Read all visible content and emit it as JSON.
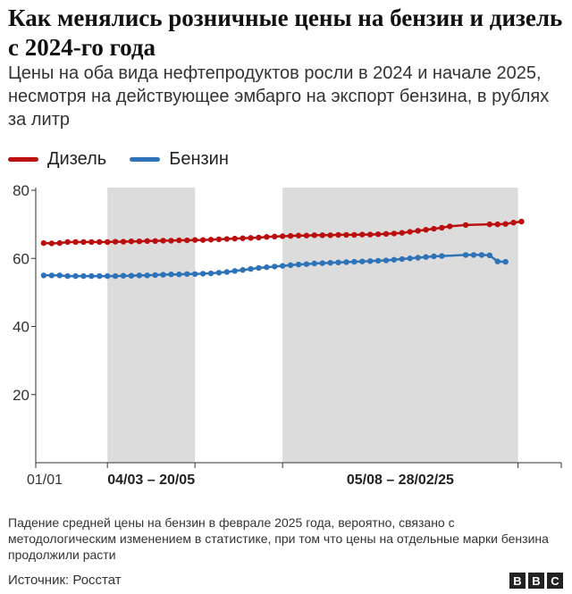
{
  "title": "Как менялись розничные цены на бензин и дизель с 2024-го года",
  "subtitle": "Цены на оба вида нефтепродуктов росли в 2024 и начале 2025, несмотря на действующее эмбарго на экспорт бензина, в рублях за литр",
  "note": "Падение средней цены на бензин в феврале 2025 года, вероятно, связано с методологическим изменением в статистике, при том что цены на отдельные марки бензина продолжили расти",
  "source": "Источник: Росстат",
  "logo": [
    "B",
    "B",
    "C"
  ],
  "colors": {
    "diesel": "#BB0F0F",
    "gasoline": "#2E73B8",
    "shade": "#DCDCDC",
    "axis": "#333333"
  },
  "chart_data": {
    "type": "line",
    "ylim": [
      0,
      80
    ],
    "yticks": [
      20,
      40,
      60,
      80
    ],
    "grid": false,
    "legend_position": "top-left",
    "x_ticks": [
      {
        "date": "2024-01-01",
        "label": "01/01",
        "bold": false
      },
      {
        "date": "2024-03-04",
        "label": "",
        "bold": false
      },
      {
        "date": "2024-05-20",
        "label": "",
        "bold": false
      },
      {
        "date": "2024-08-05",
        "label": "",
        "bold": false
      },
      {
        "date": "2025-02-28",
        "label": "",
        "bold": false
      },
      {
        "date": "2025-04-07",
        "label": "",
        "bold": false
      }
    ],
    "x_range": [
      "2024-01-01",
      "2025-04-07"
    ],
    "shaded_periods": [
      {
        "start": "2024-03-04",
        "end": "2024-05-20",
        "label": "04/03 – 20/05"
      },
      {
        "start": "2024-08-05",
        "end": "2025-02-28",
        "label": "05/08 – 28/02/25"
      }
    ],
    "series": [
      {
        "name": "Дизель",
        "color": "#BB0F0F",
        "points": [
          [
            "2024-01-08",
            64.5
          ],
          [
            "2024-01-15",
            64.4
          ],
          [
            "2024-01-22",
            64.5
          ],
          [
            "2024-01-29",
            64.8
          ],
          [
            "2024-02-05",
            64.8
          ],
          [
            "2024-02-12",
            64.8
          ],
          [
            "2024-02-19",
            64.8
          ],
          [
            "2024-02-26",
            64.8
          ],
          [
            "2024-03-04",
            64.8
          ],
          [
            "2024-03-11",
            64.9
          ],
          [
            "2024-03-18",
            64.9
          ],
          [
            "2024-03-25",
            65.0
          ],
          [
            "2024-04-01",
            65.0
          ],
          [
            "2024-04-08",
            65.1
          ],
          [
            "2024-04-15",
            65.1
          ],
          [
            "2024-04-22",
            65.2
          ],
          [
            "2024-04-29",
            65.2
          ],
          [
            "2024-05-06",
            65.3
          ],
          [
            "2024-05-13",
            65.3
          ],
          [
            "2024-05-20",
            65.4
          ],
          [
            "2024-05-27",
            65.4
          ],
          [
            "2024-06-03",
            65.5
          ],
          [
            "2024-06-10",
            65.6
          ],
          [
            "2024-06-17",
            65.7
          ],
          [
            "2024-06-24",
            65.8
          ],
          [
            "2024-07-01",
            65.9
          ],
          [
            "2024-07-08",
            66.0
          ],
          [
            "2024-07-15",
            66.1
          ],
          [
            "2024-07-22",
            66.3
          ],
          [
            "2024-07-29",
            66.4
          ],
          [
            "2024-08-05",
            66.5
          ],
          [
            "2024-08-12",
            66.6
          ],
          [
            "2024-08-19",
            66.7
          ],
          [
            "2024-08-26",
            66.7
          ],
          [
            "2024-09-02",
            66.8
          ],
          [
            "2024-09-09",
            66.8
          ],
          [
            "2024-09-16",
            66.8
          ],
          [
            "2024-09-23",
            66.9
          ],
          [
            "2024-09-30",
            66.9
          ],
          [
            "2024-10-07",
            66.9
          ],
          [
            "2024-10-14",
            67.0
          ],
          [
            "2024-10-21",
            67.0
          ],
          [
            "2024-10-28",
            67.1
          ],
          [
            "2024-11-04",
            67.2
          ],
          [
            "2024-11-11",
            67.3
          ],
          [
            "2024-11-18",
            67.5
          ],
          [
            "2024-11-25",
            67.8
          ],
          [
            "2024-12-02",
            68.1
          ],
          [
            "2024-12-09",
            68.4
          ],
          [
            "2024-12-16",
            68.7
          ],
          [
            "2024-12-23",
            69.0
          ],
          [
            "2024-12-30",
            69.4
          ],
          [
            "2025-01-13",
            69.8
          ],
          [
            "2025-02-03",
            70.0
          ],
          [
            "2025-02-10",
            70.0
          ],
          [
            "2025-02-17",
            70.1
          ],
          [
            "2025-02-24",
            70.5
          ],
          [
            "2025-03-03",
            70.8
          ]
        ]
      },
      {
        "name": "Бензин",
        "color": "#2E73B8",
        "points": [
          [
            "2024-01-08",
            55.0
          ],
          [
            "2024-01-15",
            55.0
          ],
          [
            "2024-01-22",
            55.0
          ],
          [
            "2024-01-29",
            54.8
          ],
          [
            "2024-02-05",
            54.8
          ],
          [
            "2024-02-12",
            54.8
          ],
          [
            "2024-02-19",
            54.8
          ],
          [
            "2024-02-26",
            54.8
          ],
          [
            "2024-03-04",
            54.8
          ],
          [
            "2024-03-11",
            54.8
          ],
          [
            "2024-03-18",
            54.9
          ],
          [
            "2024-03-25",
            54.9
          ],
          [
            "2024-04-01",
            55.0
          ],
          [
            "2024-04-08",
            55.0
          ],
          [
            "2024-04-15",
            55.1
          ],
          [
            "2024-04-22",
            55.2
          ],
          [
            "2024-04-29",
            55.3
          ],
          [
            "2024-05-06",
            55.3
          ],
          [
            "2024-05-13",
            55.4
          ],
          [
            "2024-05-20",
            55.4
          ],
          [
            "2024-05-27",
            55.5
          ],
          [
            "2024-06-03",
            55.6
          ],
          [
            "2024-06-10",
            55.8
          ],
          [
            "2024-06-17",
            56.0
          ],
          [
            "2024-06-24",
            56.3
          ],
          [
            "2024-07-01",
            56.6
          ],
          [
            "2024-07-08",
            56.9
          ],
          [
            "2024-07-15",
            57.2
          ],
          [
            "2024-07-22",
            57.4
          ],
          [
            "2024-07-29",
            57.6
          ],
          [
            "2024-08-05",
            57.8
          ],
          [
            "2024-08-12",
            58.0
          ],
          [
            "2024-08-19",
            58.2
          ],
          [
            "2024-08-26",
            58.3
          ],
          [
            "2024-09-02",
            58.5
          ],
          [
            "2024-09-09",
            58.6
          ],
          [
            "2024-09-16",
            58.7
          ],
          [
            "2024-09-23",
            58.8
          ],
          [
            "2024-09-30",
            58.9
          ],
          [
            "2024-10-07",
            59.0
          ],
          [
            "2024-10-14",
            59.1
          ],
          [
            "2024-10-21",
            59.2
          ],
          [
            "2024-10-28",
            59.3
          ],
          [
            "2024-11-04",
            59.4
          ],
          [
            "2024-11-11",
            59.6
          ],
          [
            "2024-11-18",
            59.8
          ],
          [
            "2024-11-25",
            60.0
          ],
          [
            "2024-12-02",
            60.2
          ],
          [
            "2024-12-09",
            60.4
          ],
          [
            "2024-12-16",
            60.6
          ],
          [
            "2024-12-23",
            60.7
          ],
          [
            "2025-01-13",
            61.0
          ],
          [
            "2025-01-20",
            61.0
          ],
          [
            "2025-01-27",
            61.0
          ],
          [
            "2025-02-03",
            60.9
          ],
          [
            "2025-02-10",
            59.1
          ],
          [
            "2025-02-17",
            59.0
          ]
        ]
      }
    ]
  }
}
